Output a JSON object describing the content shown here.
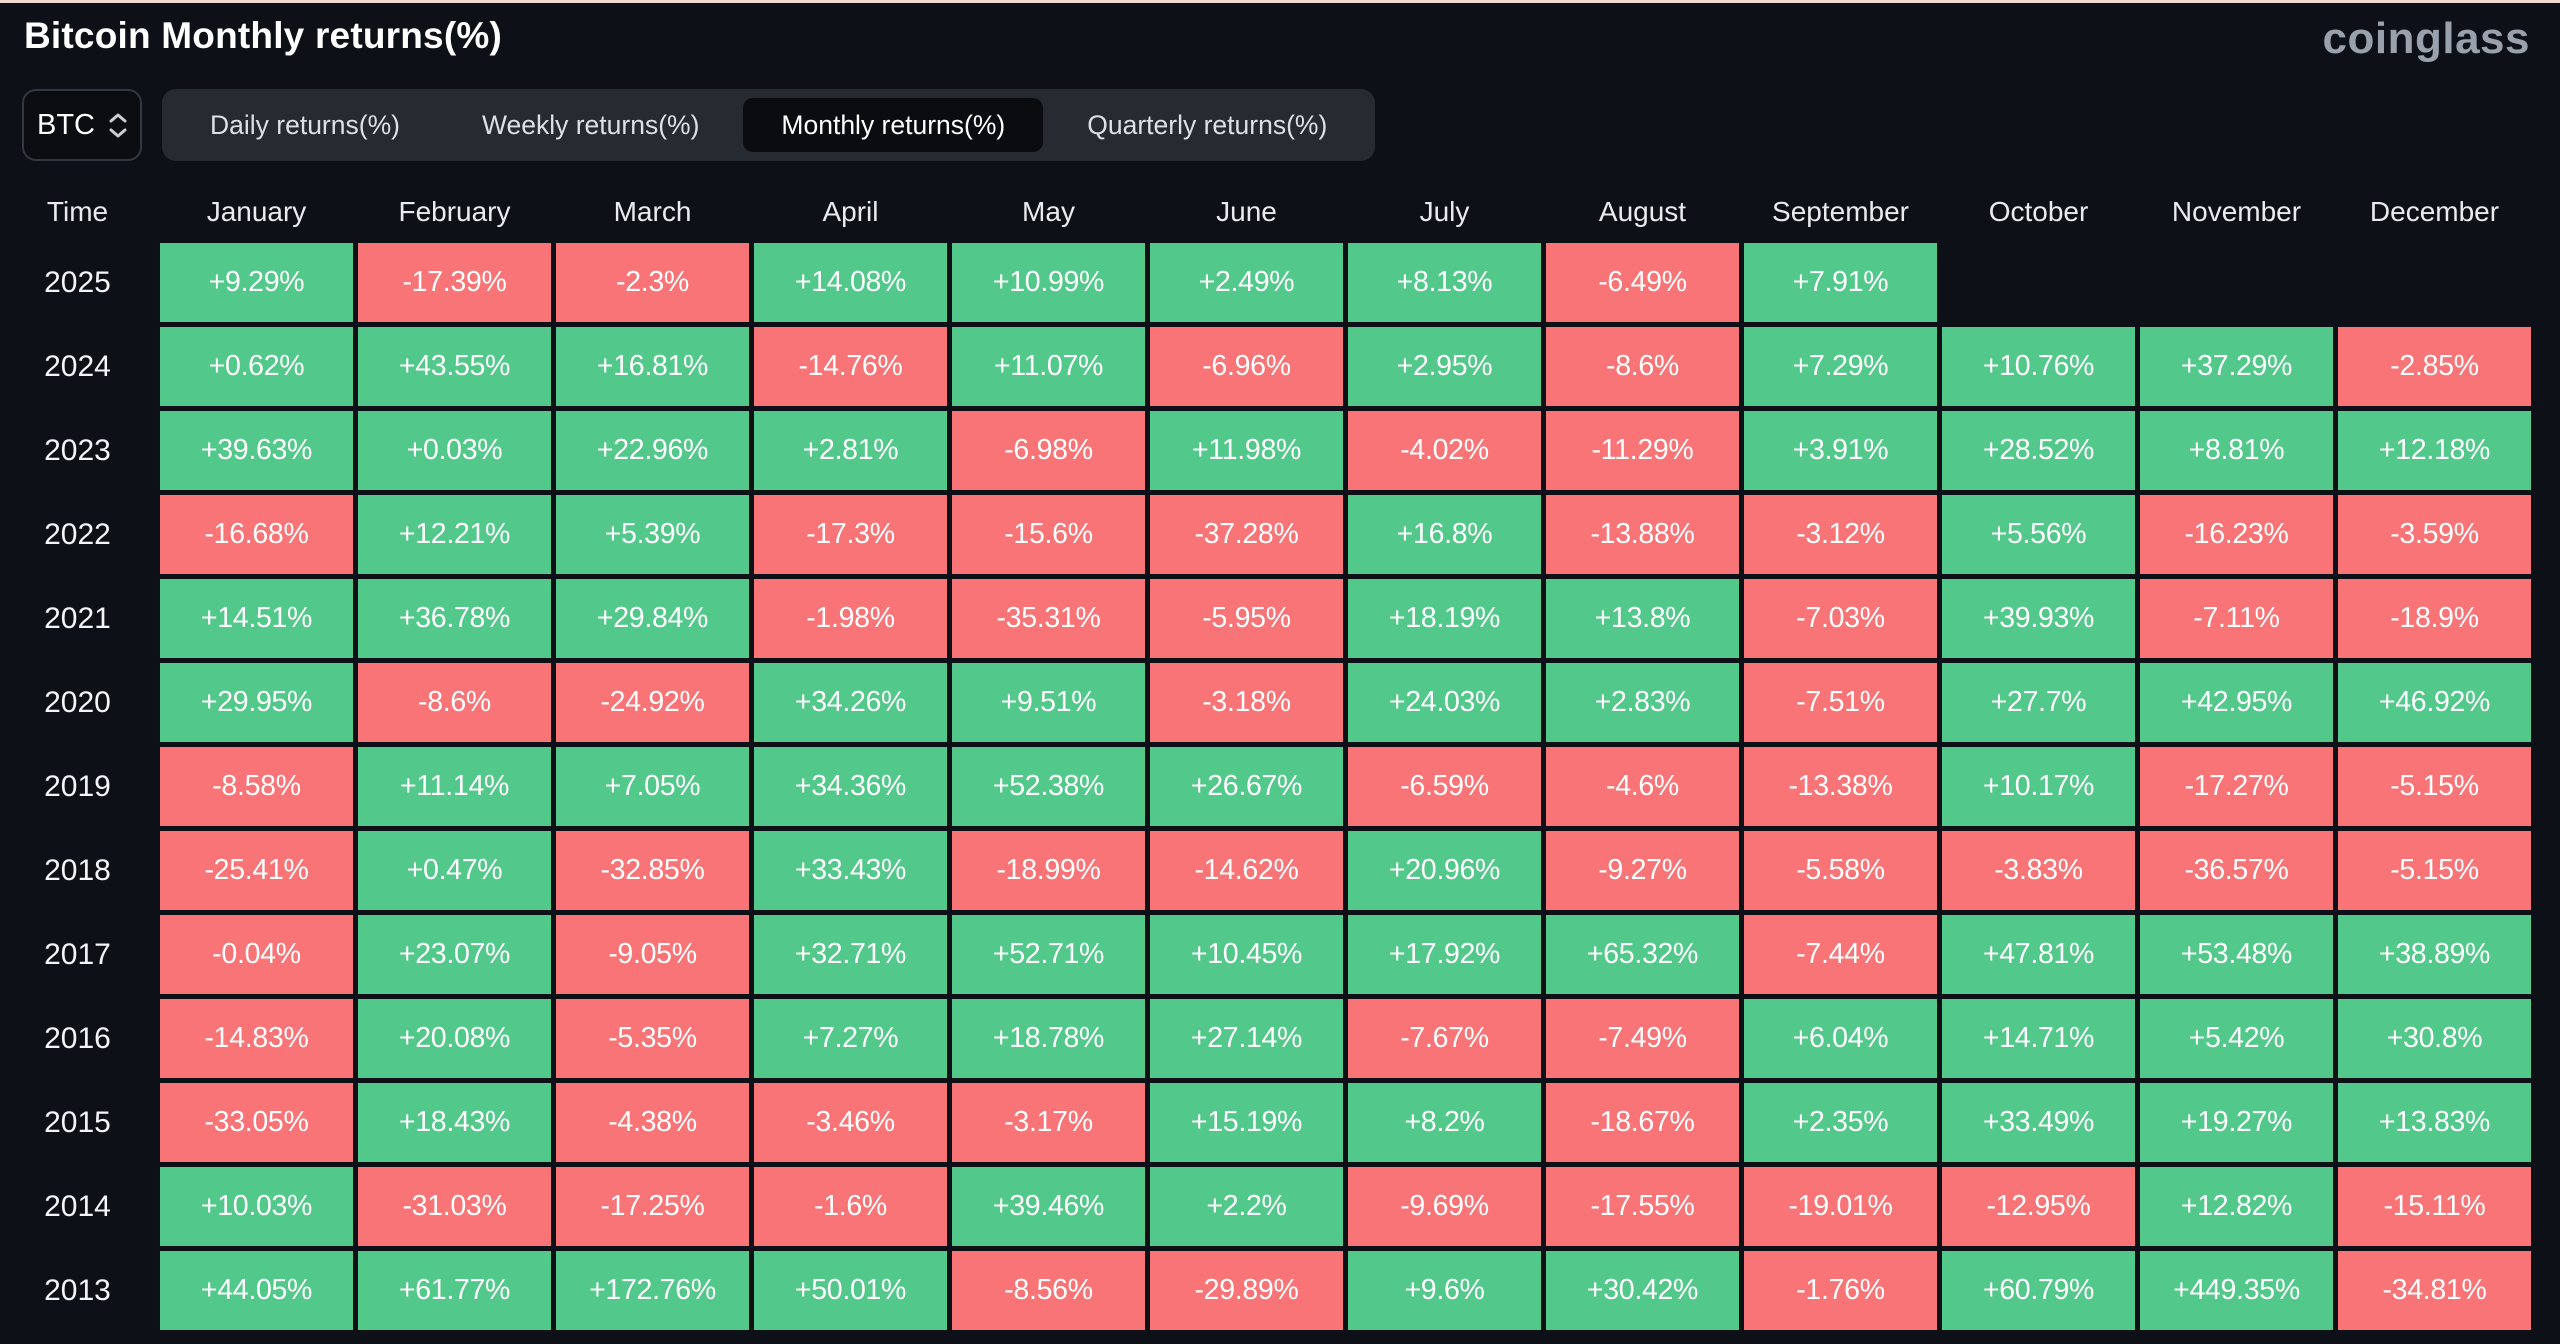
{
  "header": {
    "title": "Bitcoin Monthly returns(%)",
    "logo": "coinglass"
  },
  "controls": {
    "symbol": "BTC",
    "tabs": [
      {
        "label": "Daily returns(%)",
        "active": false
      },
      {
        "label": "Weekly returns(%)",
        "active": false
      },
      {
        "label": "Monthly returns(%)",
        "active": true
      },
      {
        "label": "Quarterly returns(%)",
        "active": false
      }
    ]
  },
  "table": {
    "time_header": "Time",
    "months": [
      "January",
      "February",
      "March",
      "April",
      "May",
      "June",
      "July",
      "August",
      "September",
      "October",
      "November",
      "December"
    ],
    "rows": [
      {
        "year": "2025",
        "values": [
          "+9.29%",
          "-17.39%",
          "-2.3%",
          "+14.08%",
          "+10.99%",
          "+2.49%",
          "+8.13%",
          "-6.49%",
          "+7.91%",
          "",
          "",
          ""
        ]
      },
      {
        "year": "2024",
        "values": [
          "+0.62%",
          "+43.55%",
          "+16.81%",
          "-14.76%",
          "+11.07%",
          "-6.96%",
          "+2.95%",
          "-8.6%",
          "+7.29%",
          "+10.76%",
          "+37.29%",
          "-2.85%"
        ]
      },
      {
        "year": "2023",
        "values": [
          "+39.63%",
          "+0.03%",
          "+22.96%",
          "+2.81%",
          "-6.98%",
          "+11.98%",
          "-4.02%",
          "-11.29%",
          "+3.91%",
          "+28.52%",
          "+8.81%",
          "+12.18%"
        ]
      },
      {
        "year": "2022",
        "values": [
          "-16.68%",
          "+12.21%",
          "+5.39%",
          "-17.3%",
          "-15.6%",
          "-37.28%",
          "+16.8%",
          "-13.88%",
          "-3.12%",
          "+5.56%",
          "-16.23%",
          "-3.59%"
        ]
      },
      {
        "year": "2021",
        "values": [
          "+14.51%",
          "+36.78%",
          "+29.84%",
          "-1.98%",
          "-35.31%",
          "-5.95%",
          "+18.19%",
          "+13.8%",
          "-7.03%",
          "+39.93%",
          "-7.11%",
          "-18.9%"
        ]
      },
      {
        "year": "2020",
        "values": [
          "+29.95%",
          "-8.6%",
          "-24.92%",
          "+34.26%",
          "+9.51%",
          "-3.18%",
          "+24.03%",
          "+2.83%",
          "-7.51%",
          "+27.7%",
          "+42.95%",
          "+46.92%"
        ]
      },
      {
        "year": "2019",
        "values": [
          "-8.58%",
          "+11.14%",
          "+7.05%",
          "+34.36%",
          "+52.38%",
          "+26.67%",
          "-6.59%",
          "-4.6%",
          "-13.38%",
          "+10.17%",
          "-17.27%",
          "-5.15%"
        ]
      },
      {
        "year": "2018",
        "values": [
          "-25.41%",
          "+0.47%",
          "-32.85%",
          "+33.43%",
          "-18.99%",
          "-14.62%",
          "+20.96%",
          "-9.27%",
          "-5.58%",
          "-3.83%",
          "-36.57%",
          "-5.15%"
        ]
      },
      {
        "year": "2017",
        "values": [
          "-0.04%",
          "+23.07%",
          "-9.05%",
          "+32.71%",
          "+52.71%",
          "+10.45%",
          "+17.92%",
          "+65.32%",
          "-7.44%",
          "+47.81%",
          "+53.48%",
          "+38.89%"
        ]
      },
      {
        "year": "2016",
        "values": [
          "-14.83%",
          "+20.08%",
          "-5.35%",
          "+7.27%",
          "+18.78%",
          "+27.14%",
          "-7.67%",
          "-7.49%",
          "+6.04%",
          "+14.71%",
          "+5.42%",
          "+30.8%"
        ]
      },
      {
        "year": "2015",
        "values": [
          "-33.05%",
          "+18.43%",
          "-4.38%",
          "-3.46%",
          "-3.17%",
          "+15.19%",
          "+8.2%",
          "-18.67%",
          "+2.35%",
          "+33.49%",
          "+19.27%",
          "+13.83%"
        ]
      },
      {
        "year": "2014",
        "values": [
          "+10.03%",
          "-31.03%",
          "-17.25%",
          "-1.6%",
          "+39.46%",
          "+2.2%",
          "-9.69%",
          "-17.55%",
          "-19.01%",
          "-12.95%",
          "+12.82%",
          "-15.11%"
        ]
      },
      {
        "year": "2013",
        "values": [
          "+44.05%",
          "+61.77%",
          "+172.76%",
          "+50.01%",
          "-8.56%",
          "-29.89%",
          "+9.6%",
          "+30.42%",
          "-1.76%",
          "+60.79%",
          "+449.35%",
          "-34.81%"
        ]
      }
    ]
  },
  "colors": {
    "positive": "#52c98a",
    "negative": "#f87476",
    "background": "#0d1117",
    "top_line": "#efd9d1",
    "tab_bar": "#262a31",
    "active_tab": "#0a0c10"
  },
  "chart_data": {
    "type": "heatmap",
    "title": "Bitcoin Monthly returns(%)",
    "unit": "%",
    "x_categories": [
      "January",
      "February",
      "March",
      "April",
      "May",
      "June",
      "July",
      "August",
      "September",
      "October",
      "November",
      "December"
    ],
    "y_categories": [
      "2025",
      "2024",
      "2023",
      "2022",
      "2021",
      "2020",
      "2019",
      "2018",
      "2017",
      "2016",
      "2015",
      "2014",
      "2013"
    ],
    "legend_position": "none",
    "series": [
      {
        "name": "2025",
        "values": [
          9.29,
          -17.39,
          -2.3,
          14.08,
          10.99,
          2.49,
          8.13,
          -6.49,
          7.91,
          null,
          null,
          null
        ]
      },
      {
        "name": "2024",
        "values": [
          0.62,
          43.55,
          16.81,
          -14.76,
          11.07,
          -6.96,
          2.95,
          -8.6,
          7.29,
          10.76,
          37.29,
          -2.85
        ]
      },
      {
        "name": "2023",
        "values": [
          39.63,
          0.03,
          22.96,
          2.81,
          -6.98,
          11.98,
          -4.02,
          -11.29,
          3.91,
          28.52,
          8.81,
          12.18
        ]
      },
      {
        "name": "2022",
        "values": [
          -16.68,
          12.21,
          5.39,
          -17.3,
          -15.6,
          -37.28,
          16.8,
          -13.88,
          -3.12,
          5.56,
          -16.23,
          -3.59
        ]
      },
      {
        "name": "2021",
        "values": [
          14.51,
          36.78,
          29.84,
          -1.98,
          -35.31,
          -5.95,
          18.19,
          13.8,
          -7.03,
          39.93,
          -7.11,
          -18.9
        ]
      },
      {
        "name": "2020",
        "values": [
          29.95,
          -8.6,
          -24.92,
          34.26,
          9.51,
          -3.18,
          24.03,
          2.83,
          -7.51,
          27.7,
          42.95,
          46.92
        ]
      },
      {
        "name": "2019",
        "values": [
          -8.58,
          11.14,
          7.05,
          34.36,
          52.38,
          26.67,
          -6.59,
          -4.6,
          -13.38,
          10.17,
          -17.27,
          -5.15
        ]
      },
      {
        "name": "2018",
        "values": [
          -25.41,
          0.47,
          -32.85,
          33.43,
          -18.99,
          -14.62,
          20.96,
          -9.27,
          -5.58,
          -3.83,
          -36.57,
          -5.15
        ]
      },
      {
        "name": "2017",
        "values": [
          -0.04,
          23.07,
          -9.05,
          32.71,
          52.71,
          10.45,
          17.92,
          65.32,
          -7.44,
          47.81,
          53.48,
          38.89
        ]
      },
      {
        "name": "2016",
        "values": [
          -14.83,
          20.08,
          -5.35,
          7.27,
          18.78,
          27.14,
          -7.67,
          -7.49,
          6.04,
          14.71,
          5.42,
          30.8
        ]
      },
      {
        "name": "2015",
        "values": [
          -33.05,
          18.43,
          -4.38,
          -3.46,
          -3.17,
          15.19,
          8.2,
          -18.67,
          2.35,
          33.49,
          19.27,
          13.83
        ]
      },
      {
        "name": "2014",
        "values": [
          10.03,
          -31.03,
          -17.25,
          -1.6,
          39.46,
          2.2,
          -9.69,
          -17.55,
          -19.01,
          -12.95,
          12.82,
          -15.11
        ]
      },
      {
        "name": "2013",
        "values": [
          44.05,
          61.77,
          172.76,
          50.01,
          -8.56,
          -29.89,
          9.6,
          30.42,
          -1.76,
          60.79,
          449.35,
          -34.81
        ]
      }
    ]
  }
}
